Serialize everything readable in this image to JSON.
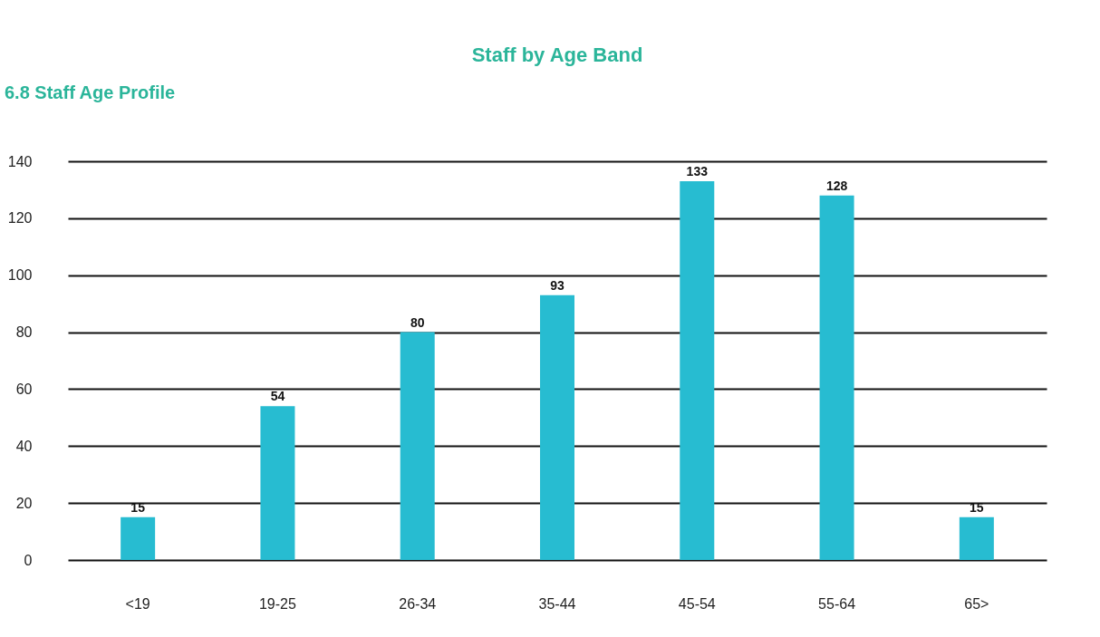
{
  "chart_data": {
    "type": "bar",
    "title": "Staff by Age Band",
    "annotations": [
      "6.8 Staff Age Profile"
    ],
    "categories": [
      "<19",
      "19-25",
      "26-34",
      "35-44",
      "45-54",
      "55-64",
      "65>"
    ],
    "values": [
      15,
      54,
      80,
      93,
      133,
      128,
      15
    ],
    "color": "#27bcd1",
    "ylim": [
      0,
      140
    ],
    "yticks": [
      0,
      20,
      40,
      60,
      80,
      100,
      120,
      140
    ],
    "grid": "y",
    "data_labels": true
  }
}
